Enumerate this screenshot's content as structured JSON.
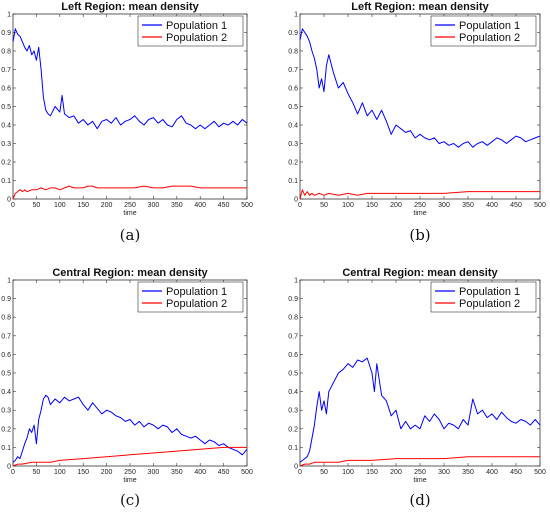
{
  "chart_data": [
    {
      "type": "line",
      "panel_label": "(a)",
      "title": "Left Region: mean density",
      "xlabel": "time",
      "ylabel": "",
      "xlim": [
        0,
        500
      ],
      "ylim": [
        0,
        1
      ],
      "xticks": [
        0,
        50,
        100,
        150,
        200,
        250,
        300,
        350,
        400,
        450,
        500
      ],
      "yticks": [
        0,
        0.1,
        0.2,
        0.3,
        0.4,
        0.5,
        0.6,
        0.7,
        0.8,
        0.9,
        1
      ],
      "legend_position": "top-right",
      "series": [
        {
          "name": "Population 1",
          "color": "#0000ff",
          "x": [
            0,
            5,
            10,
            15,
            20,
            25,
            30,
            35,
            40,
            45,
            50,
            55,
            60,
            65,
            70,
            75,
            80,
            90,
            100,
            105,
            110,
            120,
            130,
            140,
            150,
            160,
            170,
            180,
            190,
            200,
            210,
            220,
            230,
            240,
            250,
            260,
            270,
            280,
            290,
            300,
            310,
            320,
            330,
            340,
            350,
            360,
            370,
            380,
            390,
            400,
            410,
            420,
            430,
            440,
            450,
            460,
            470,
            480,
            490,
            500
          ],
          "y": [
            0.85,
            0.92,
            0.89,
            0.88,
            0.85,
            0.82,
            0.8,
            0.83,
            0.78,
            0.8,
            0.75,
            0.82,
            0.7,
            0.55,
            0.48,
            0.46,
            0.45,
            0.5,
            0.47,
            0.56,
            0.46,
            0.44,
            0.45,
            0.41,
            0.43,
            0.4,
            0.42,
            0.38,
            0.42,
            0.43,
            0.41,
            0.44,
            0.4,
            0.42,
            0.43,
            0.45,
            0.42,
            0.4,
            0.43,
            0.44,
            0.41,
            0.43,
            0.4,
            0.39,
            0.43,
            0.45,
            0.41,
            0.4,
            0.38,
            0.4,
            0.38,
            0.4,
            0.42,
            0.39,
            0.41,
            0.4,
            0.42,
            0.4,
            0.43,
            0.41
          ]
        },
        {
          "name": "Population 2",
          "color": "#ff0000",
          "x": [
            0,
            5,
            10,
            15,
            20,
            25,
            30,
            40,
            50,
            60,
            70,
            80,
            90,
            100,
            110,
            120,
            130,
            140,
            150,
            160,
            170,
            180,
            190,
            200,
            220,
            240,
            260,
            280,
            300,
            320,
            340,
            360,
            380,
            400,
            420,
            440,
            460,
            480,
            500
          ],
          "y": [
            0.0,
            0.03,
            0.04,
            0.05,
            0.04,
            0.05,
            0.04,
            0.05,
            0.05,
            0.06,
            0.05,
            0.06,
            0.06,
            0.05,
            0.06,
            0.07,
            0.06,
            0.06,
            0.06,
            0.07,
            0.07,
            0.06,
            0.06,
            0.06,
            0.06,
            0.06,
            0.06,
            0.07,
            0.06,
            0.06,
            0.07,
            0.07,
            0.07,
            0.06,
            0.06,
            0.06,
            0.06,
            0.06,
            0.06
          ]
        }
      ]
    },
    {
      "type": "line",
      "panel_label": "(b)",
      "title": "Left Region: mean density",
      "xlabel": "time",
      "ylabel": "",
      "xlim": [
        0,
        500
      ],
      "ylim": [
        0,
        1
      ],
      "xticks": [
        0,
        50,
        100,
        150,
        200,
        250,
        300,
        350,
        400,
        450,
        500
      ],
      "yticks": [
        0,
        0.1,
        0.2,
        0.3,
        0.4,
        0.5,
        0.6,
        0.7,
        0.8,
        0.9,
        1
      ],
      "legend_position": "top-right",
      "series": [
        {
          "name": "Population 1",
          "color": "#0000ff",
          "x": [
            0,
            5,
            10,
            15,
            20,
            25,
            30,
            35,
            40,
            45,
            50,
            55,
            60,
            70,
            80,
            90,
            100,
            110,
            120,
            130,
            140,
            150,
            160,
            170,
            180,
            190,
            200,
            210,
            220,
            230,
            240,
            250,
            260,
            270,
            280,
            290,
            300,
            310,
            320,
            330,
            340,
            350,
            360,
            370,
            380,
            390,
            400,
            410,
            420,
            430,
            440,
            450,
            460,
            470,
            480,
            490,
            500
          ],
          "y": [
            0.86,
            0.92,
            0.9,
            0.88,
            0.85,
            0.8,
            0.76,
            0.7,
            0.6,
            0.65,
            0.58,
            0.72,
            0.78,
            0.68,
            0.6,
            0.63,
            0.57,
            0.52,
            0.46,
            0.52,
            0.45,
            0.48,
            0.43,
            0.48,
            0.42,
            0.35,
            0.4,
            0.38,
            0.36,
            0.37,
            0.33,
            0.35,
            0.33,
            0.32,
            0.33,
            0.3,
            0.31,
            0.29,
            0.3,
            0.28,
            0.3,
            0.31,
            0.28,
            0.3,
            0.31,
            0.29,
            0.31,
            0.33,
            0.32,
            0.3,
            0.32,
            0.34,
            0.33,
            0.31,
            0.32,
            0.33,
            0.34
          ]
        },
        {
          "name": "Population 2",
          "color": "#ff0000",
          "x": [
            0,
            5,
            10,
            15,
            20,
            25,
            30,
            40,
            50,
            60,
            80,
            100,
            120,
            140,
            160,
            180,
            200,
            250,
            300,
            350,
            400,
            450,
            500
          ],
          "y": [
            0.0,
            0.05,
            0.02,
            0.04,
            0.02,
            0.03,
            0.02,
            0.03,
            0.02,
            0.03,
            0.02,
            0.03,
            0.02,
            0.03,
            0.03,
            0.03,
            0.03,
            0.03,
            0.03,
            0.04,
            0.04,
            0.04,
            0.04
          ]
        }
      ]
    },
    {
      "type": "line",
      "panel_label": "(c)",
      "title": "Central Region: mean density",
      "xlabel": "time",
      "ylabel": "",
      "xlim": [
        0,
        500
      ],
      "ylim": [
        0,
        1
      ],
      "xticks": [
        0,
        50,
        100,
        150,
        200,
        250,
        300,
        350,
        400,
        450,
        500
      ],
      "yticks": [
        0,
        0.1,
        0.2,
        0.3,
        0.4,
        0.5,
        0.6,
        0.7,
        0.8,
        0.9,
        1
      ],
      "legend_position": "top-right",
      "series": [
        {
          "name": "Population 1",
          "color": "#0000ff",
          "x": [
            0,
            5,
            10,
            15,
            20,
            25,
            30,
            35,
            40,
            45,
            50,
            55,
            60,
            65,
            70,
            75,
            80,
            90,
            100,
            110,
            120,
            130,
            140,
            150,
            160,
            170,
            180,
            190,
            200,
            210,
            220,
            230,
            240,
            250,
            260,
            270,
            280,
            290,
            300,
            310,
            320,
            330,
            340,
            350,
            360,
            370,
            380,
            390,
            400,
            410,
            420,
            430,
            440,
            450,
            460,
            470,
            480,
            490,
            500
          ],
          "y": [
            0.02,
            0.03,
            0.05,
            0.04,
            0.08,
            0.12,
            0.15,
            0.2,
            0.18,
            0.22,
            0.12,
            0.25,
            0.3,
            0.36,
            0.38,
            0.37,
            0.33,
            0.36,
            0.34,
            0.37,
            0.35,
            0.36,
            0.37,
            0.33,
            0.3,
            0.34,
            0.31,
            0.28,
            0.3,
            0.29,
            0.27,
            0.26,
            0.24,
            0.25,
            0.22,
            0.24,
            0.21,
            0.23,
            0.22,
            0.2,
            0.22,
            0.21,
            0.18,
            0.2,
            0.17,
            0.16,
            0.15,
            0.16,
            0.14,
            0.12,
            0.14,
            0.13,
            0.11,
            0.12,
            0.1,
            0.09,
            0.08,
            0.06,
            0.09
          ]
        },
        {
          "name": "Population 2",
          "color": "#ff0000",
          "x": [
            0,
            10,
            20,
            40,
            60,
            80,
            100,
            150,
            200,
            250,
            300,
            350,
            400,
            450,
            480,
            500
          ],
          "y": [
            0.0,
            0.01,
            0.01,
            0.02,
            0.02,
            0.02,
            0.03,
            0.04,
            0.05,
            0.06,
            0.07,
            0.08,
            0.09,
            0.1,
            0.1,
            0.1
          ]
        }
      ]
    },
    {
      "type": "line",
      "panel_label": "(d)",
      "title": "Central Region: mean density",
      "xlabel": "time",
      "ylabel": "",
      "xlim": [
        0,
        500
      ],
      "ylim": [
        0,
        1
      ],
      "xticks": [
        0,
        50,
        100,
        150,
        200,
        250,
        300,
        350,
        400,
        450,
        500
      ],
      "yticks": [
        0,
        0.1,
        0.2,
        0.3,
        0.4,
        0.5,
        0.6,
        0.7,
        0.8,
        0.9,
        1
      ],
      "legend_position": "top-right",
      "series": [
        {
          "name": "Population 1",
          "color": "#0000ff",
          "x": [
            0,
            5,
            10,
            15,
            20,
            25,
            30,
            35,
            40,
            45,
            50,
            55,
            60,
            70,
            80,
            90,
            100,
            110,
            120,
            130,
            140,
            150,
            155,
            160,
            170,
            180,
            190,
            200,
            210,
            220,
            230,
            240,
            250,
            260,
            270,
            280,
            290,
            300,
            310,
            320,
            330,
            340,
            350,
            360,
            370,
            380,
            390,
            400,
            410,
            420,
            430,
            440,
            450,
            460,
            470,
            480,
            490,
            500
          ],
          "y": [
            0.02,
            0.03,
            0.04,
            0.05,
            0.08,
            0.15,
            0.22,
            0.32,
            0.4,
            0.3,
            0.35,
            0.28,
            0.4,
            0.45,
            0.5,
            0.52,
            0.55,
            0.53,
            0.57,
            0.56,
            0.58,
            0.5,
            0.4,
            0.55,
            0.38,
            0.35,
            0.27,
            0.3,
            0.2,
            0.24,
            0.2,
            0.22,
            0.2,
            0.27,
            0.24,
            0.28,
            0.25,
            0.2,
            0.23,
            0.22,
            0.2,
            0.25,
            0.22,
            0.36,
            0.28,
            0.3,
            0.26,
            0.28,
            0.25,
            0.29,
            0.26,
            0.24,
            0.23,
            0.25,
            0.24,
            0.22,
            0.25,
            0.22
          ]
        },
        {
          "name": "Population 2",
          "color": "#ff0000",
          "x": [
            0,
            10,
            20,
            30,
            50,
            80,
            100,
            150,
            200,
            250,
            300,
            350,
            400,
            450,
            500
          ],
          "y": [
            0.0,
            0.01,
            0.01,
            0.02,
            0.02,
            0.02,
            0.03,
            0.03,
            0.04,
            0.04,
            0.04,
            0.05,
            0.05,
            0.05,
            0.05
          ]
        }
      ]
    }
  ]
}
